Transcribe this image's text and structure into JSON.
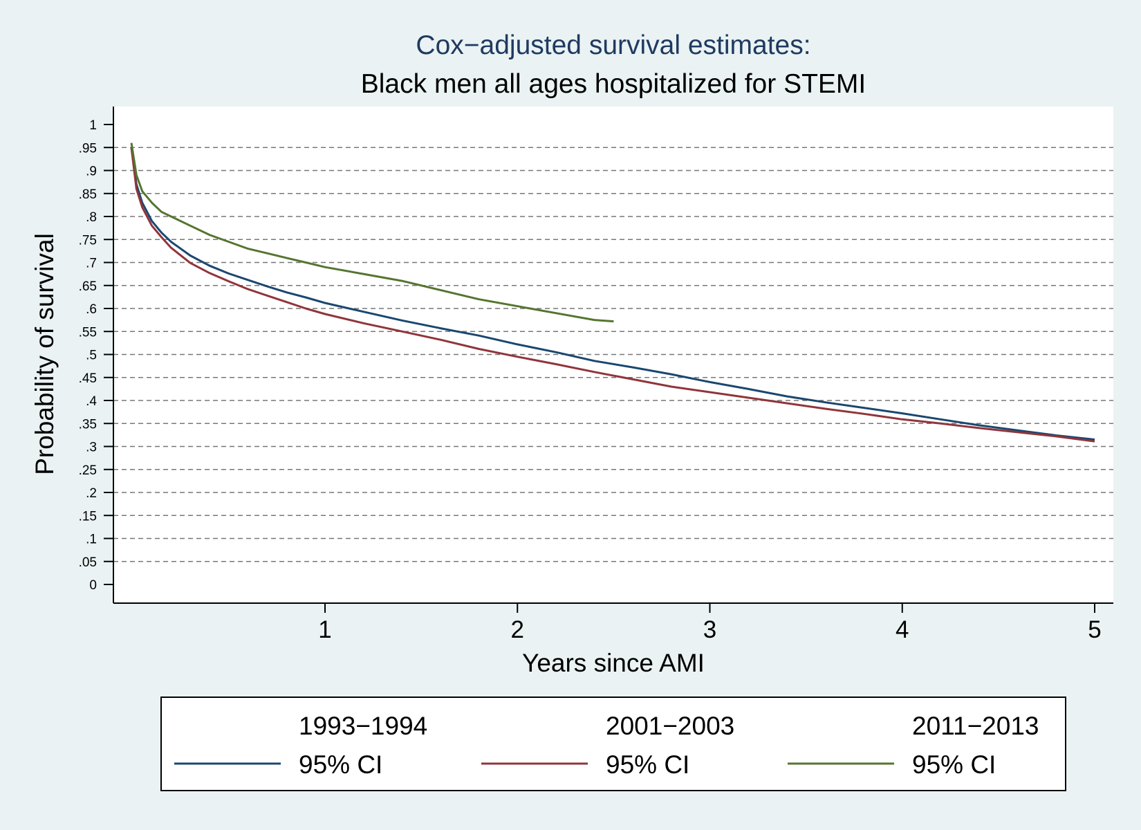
{
  "chart_data": {
    "type": "line",
    "title": "Cox−adjusted survival estimates:",
    "subtitle": "Black men all ages hospitalized for STEMI",
    "xlabel": "Years since AMI",
    "ylabel": "Probability of survival",
    "xlim": [
      -0.1,
      5.05
    ],
    "ylim": [
      -0.04,
      1.04
    ],
    "x_ticks": [
      1,
      2,
      3,
      4,
      5
    ],
    "x_tick_labels": [
      "1",
      "2",
      "3",
      "4",
      "5"
    ],
    "y_ticks": [
      0,
      0.05,
      0.1,
      0.15,
      0.2,
      0.25,
      0.3,
      0.35,
      0.4,
      0.45,
      0.5,
      0.55,
      0.6,
      0.65,
      0.7,
      0.75,
      0.8,
      0.85,
      0.9,
      0.95,
      1
    ],
    "y_tick_labels": [
      "0",
      ".05",
      ".1",
      ".15",
      ".2",
      ".25",
      ".3",
      ".35",
      ".4",
      ".45",
      ".5",
      ".55",
      ".6",
      ".65",
      ".7",
      ".75",
      ".8",
      ".85",
      ".9",
      ".95",
      "1"
    ],
    "grid": "horizontal-dashed",
    "legend": {
      "placement": "bottom",
      "entries": [
        {
          "label": "1993−1994",
          "ci_label": "95% CI",
          "color": "#1a476f"
        },
        {
          "label": "2001−2003",
          "ci_label": "95% CI",
          "color": "#90353b"
        },
        {
          "label": "2011−2013",
          "ci_label": "95% CI",
          "color": "#55752f"
        }
      ]
    },
    "series": [
      {
        "name": "1993−1994",
        "color": "#1a476f",
        "x": [
          0,
          0.02,
          0.05,
          0.1,
          0.15,
          0.2,
          0.3,
          0.4,
          0.5,
          0.6,
          0.7,
          0.8,
          0.9,
          1.0,
          1.2,
          1.4,
          1.6,
          1.8,
          2.0,
          2.2,
          2.4,
          2.6,
          2.8,
          3.0,
          3.2,
          3.4,
          3.6,
          3.8,
          4.0,
          4.2,
          4.4,
          4.6,
          4.8,
          5.0
        ],
        "y": [
          0.95,
          0.87,
          0.83,
          0.79,
          0.765,
          0.745,
          0.715,
          0.693,
          0.676,
          0.662,
          0.648,
          0.635,
          0.624,
          0.612,
          0.593,
          0.574,
          0.557,
          0.541,
          0.522,
          0.505,
          0.486,
          0.472,
          0.457,
          0.44,
          0.425,
          0.409,
          0.396,
          0.384,
          0.372,
          0.359,
          0.346,
          0.335,
          0.324,
          0.315
        ]
      },
      {
        "name": "2001−2003",
        "color": "#90353b",
        "x": [
          0,
          0.02,
          0.05,
          0.1,
          0.15,
          0.2,
          0.3,
          0.4,
          0.5,
          0.6,
          0.7,
          0.8,
          0.9,
          1.0,
          1.2,
          1.4,
          1.6,
          1.8,
          2.0,
          2.2,
          2.4,
          2.6,
          2.8,
          3.0,
          3.2,
          3.4,
          3.6,
          3.8,
          4.0,
          4.2,
          4.4,
          4.6,
          4.8,
          5.0
        ],
        "y": [
          0.95,
          0.86,
          0.82,
          0.78,
          0.755,
          0.732,
          0.699,
          0.677,
          0.659,
          0.642,
          0.628,
          0.614,
          0.6,
          0.588,
          0.568,
          0.55,
          0.532,
          0.512,
          0.495,
          0.479,
          0.462,
          0.446,
          0.43,
          0.418,
          0.406,
          0.394,
          0.382,
          0.371,
          0.359,
          0.35,
          0.34,
          0.331,
          0.322,
          0.311
        ]
      },
      {
        "name": "2011−2013",
        "color": "#55752f",
        "x": [
          0,
          0.02,
          0.05,
          0.1,
          0.15,
          0.2,
          0.3,
          0.4,
          0.5,
          0.6,
          0.7,
          0.8,
          0.9,
          1.0,
          1.2,
          1.4,
          1.6,
          1.8,
          2.0,
          2.2,
          2.4,
          2.5
        ],
        "y": [
          0.96,
          0.89,
          0.855,
          0.83,
          0.81,
          0.8,
          0.78,
          0.76,
          0.745,
          0.73,
          0.72,
          0.71,
          0.7,
          0.69,
          0.675,
          0.66,
          0.64,
          0.62,
          0.605,
          0.59,
          0.575,
          0.572
        ]
      }
    ]
  }
}
